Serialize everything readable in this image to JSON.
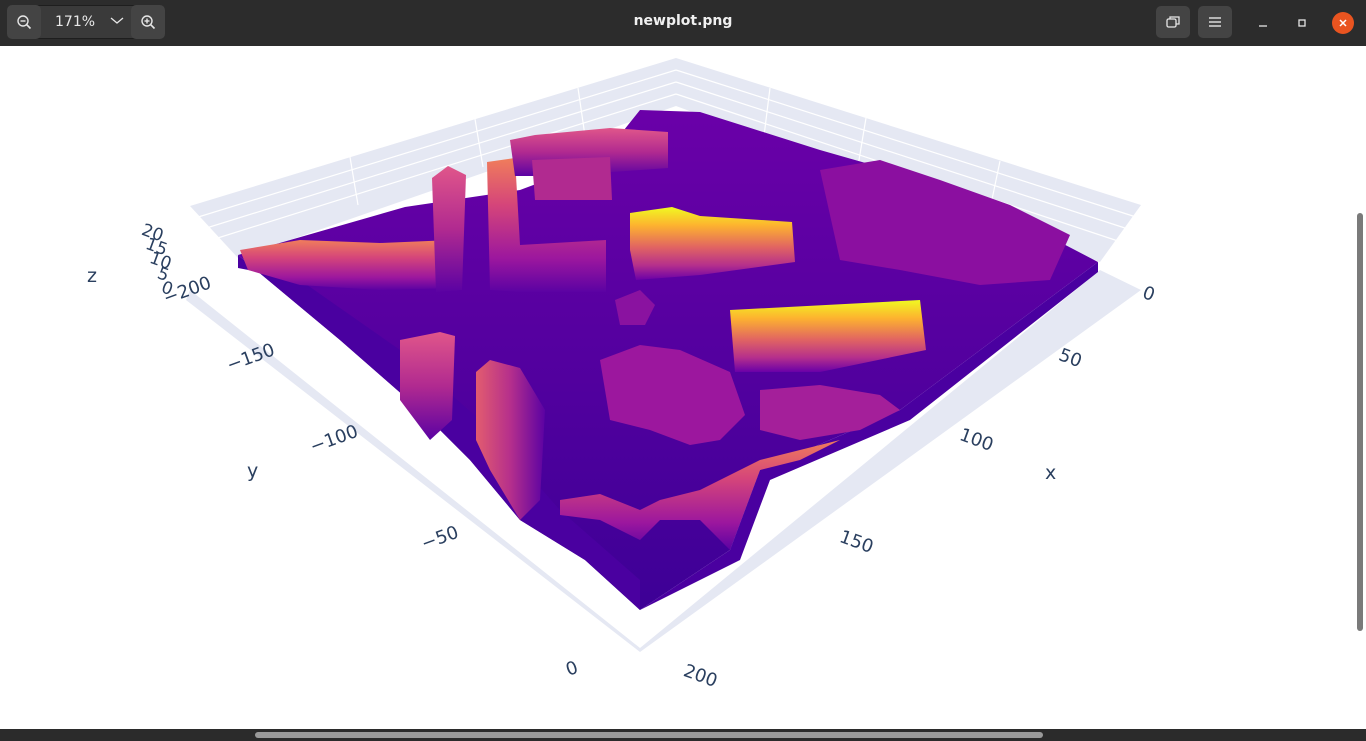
{
  "window": {
    "title": "newplot.png",
    "zoom_level": "171%"
  },
  "icons": {
    "zoom_out": "zoom-out-icon",
    "zoom_in": "zoom-in-icon",
    "dropdown": "chevron-down-icon",
    "fit": "fit-window-icon",
    "menu": "hamburger-menu-icon",
    "minimize": "minimize-icon",
    "maximize": "maximize-icon",
    "close": "close-icon"
  },
  "colors": {
    "close_button": "#e95420",
    "grid_plane": "#e5e8f3",
    "surface_low": "#3d0096",
    "surface_high": "#f0f921"
  },
  "chart_data": {
    "type": "surface",
    "colorscale": "plasma",
    "axes": {
      "x": {
        "label": "x",
        "ticks": [
          "0",
          "50",
          "100",
          "150",
          "200"
        ]
      },
      "y": {
        "label": "y",
        "ticks": [
          "−200",
          "−150",
          "−100",
          "−50",
          "0"
        ]
      },
      "z": {
        "label": "z",
        "ticks": [
          "0",
          "5",
          "10",
          "15",
          "20"
        ]
      }
    },
    "xlim": [
      0,
      200
    ],
    "ylim": [
      -200,
      0
    ],
    "zlim": [
      0,
      20
    ]
  }
}
